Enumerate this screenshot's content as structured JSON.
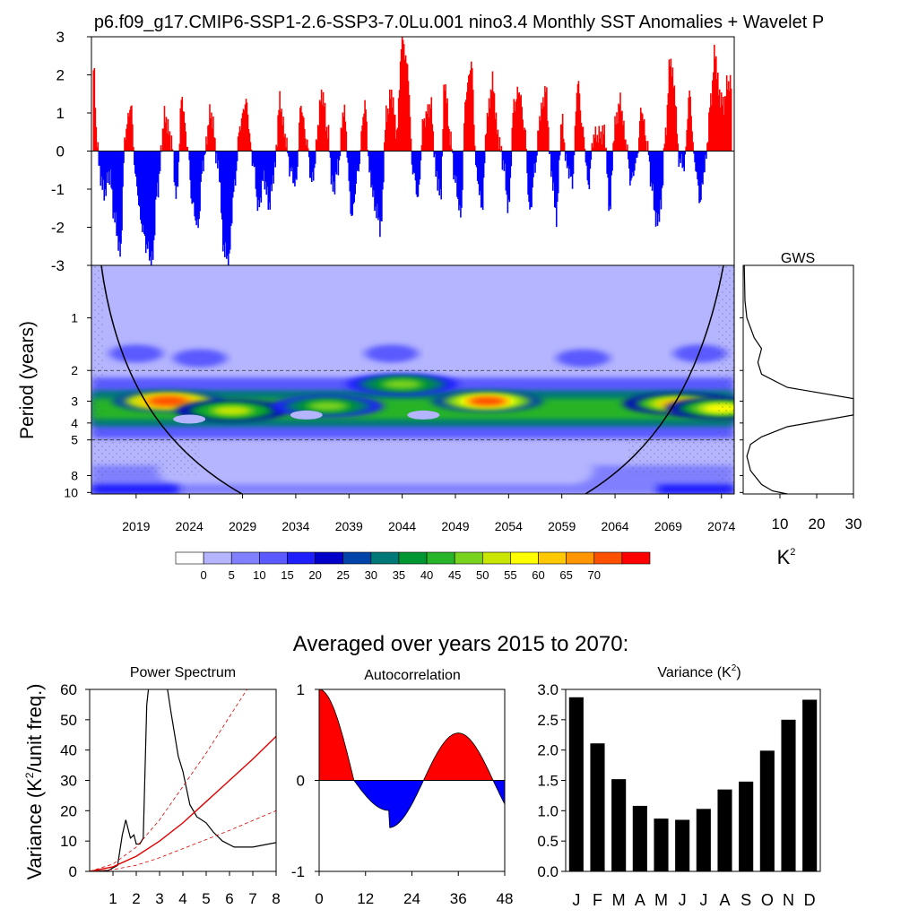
{
  "title": "p6.f09_g17.CMIP6-SSP1-2.6-SSP3-7.0Lu.001 nino3.4 Monthly SST Anomalies + Wavelet P",
  "subtitle": "Averaged over years 2015 to 2070:",
  "colors": {
    "positive": "#ff0000",
    "negative": "#0000ff"
  },
  "chart_data": [
    {
      "type": "area",
      "name": "nino34-timeseries",
      "xlim": [
        2014.8,
        2075.2
      ],
      "ylim": [
        -3,
        3
      ],
      "yticks": [
        "3",
        "2",
        "1",
        "0",
        "-1",
        "-2",
        "-3"
      ],
      "ytick_values": [
        3,
        2,
        1,
        0,
        -1,
        -2,
        -3
      ],
      "anchors": [
        [
          2015.0,
          2.3
        ],
        [
          2015.3,
          0.4
        ],
        [
          2015.6,
          -0.6
        ],
        [
          2016.0,
          -1.1
        ],
        [
          2016.5,
          -0.6
        ],
        [
          2017.0,
          -1.8
        ],
        [
          2017.5,
          -2.7
        ],
        [
          2018.0,
          0.5
        ],
        [
          2018.5,
          1.2
        ],
        [
          2019.0,
          -0.8
        ],
        [
          2019.5,
          -1.9
        ],
        [
          2020.0,
          -2.5
        ],
        [
          2020.5,
          -2.9
        ],
        [
          2021.0,
          -1.0
        ],
        [
          2021.7,
          0.9
        ],
        [
          2022.3,
          0.3
        ],
        [
          2022.8,
          -1.2
        ],
        [
          2023.3,
          1.4
        ],
        [
          2023.8,
          0.2
        ],
        [
          2024.3,
          -1.4
        ],
        [
          2024.8,
          -2.0
        ],
        [
          2025.3,
          -0.3
        ],
        [
          2026.0,
          1.0
        ],
        [
          2026.8,
          -0.5
        ],
        [
          2027.2,
          -2.5
        ],
        [
          2027.7,
          -2.9
        ],
        [
          2028.2,
          -1.0
        ],
        [
          2028.8,
          0.7
        ],
        [
          2029.3,
          1.3
        ],
        [
          2030.0,
          -0.3
        ],
        [
          2030.5,
          -1.5
        ],
        [
          2031.0,
          -0.7
        ],
        [
          2031.5,
          -1.4
        ],
        [
          2032.0,
          -0.5
        ],
        [
          2032.5,
          1.3
        ],
        [
          2033.0,
          0.4
        ],
        [
          2033.5,
          -0.5
        ],
        [
          2034.0,
          -0.9
        ],
        [
          2034.5,
          1.2
        ],
        [
          2035.0,
          0.3
        ],
        [
          2035.5,
          -0.8
        ],
        [
          2036.5,
          1.5
        ],
        [
          2037.0,
          0.5
        ],
        [
          2037.5,
          -1.0
        ],
        [
          2038.0,
          -0.4
        ],
        [
          2038.5,
          1.1
        ],
        [
          2039.3,
          -1.7
        ],
        [
          2039.8,
          -0.6
        ],
        [
          2040.5,
          1.2
        ],
        [
          2041.0,
          -0.7
        ],
        [
          2041.5,
          -1.5
        ],
        [
          2042.0,
          -2.0
        ],
        [
          2042.5,
          0.9
        ],
        [
          2043.0,
          1.5
        ],
        [
          2043.5,
          0.5
        ],
        [
          2044.0,
          3.0
        ],
        [
          2044.5,
          2.2
        ],
        [
          2045.0,
          -0.5
        ],
        [
          2045.5,
          -1.2
        ],
        [
          2046.0,
          0.8
        ],
        [
          2046.7,
          1.2
        ],
        [
          2047.2,
          -0.6
        ],
        [
          2047.6,
          -1.2
        ],
        [
          2048.0,
          1.8
        ],
        [
          2048.5,
          0.4
        ],
        [
          2049.0,
          -0.8
        ],
        [
          2049.5,
          -1.7
        ],
        [
          2050.0,
          1.5
        ],
        [
          2050.5,
          2.3
        ],
        [
          2051.0,
          -0.6
        ],
        [
          2051.5,
          -1.5
        ],
        [
          2052.0,
          0.9
        ],
        [
          2052.5,
          1.8
        ],
        [
          2053.0,
          0.4
        ],
        [
          2053.5,
          -0.3
        ],
        [
          2054.0,
          -1.5
        ],
        [
          2054.5,
          1.2
        ],
        [
          2055.0,
          1.6
        ],
        [
          2055.5,
          0.6
        ],
        [
          2056.0,
          -1.6
        ],
        [
          2056.5,
          -0.4
        ],
        [
          2057.0,
          1.0
        ],
        [
          2057.5,
          1.6
        ],
        [
          2058.0,
          -0.5
        ],
        [
          2058.5,
          -1.7
        ],
        [
          2059.0,
          0.8
        ],
        [
          2059.5,
          -0.4
        ],
        [
          2060.0,
          -0.8
        ],
        [
          2060.5,
          1.8
        ],
        [
          2061.0,
          0.5
        ],
        [
          2061.5,
          -0.9
        ],
        [
          2062.0,
          0.4
        ],
        [
          2062.5,
          0.4
        ],
        [
          2063.0,
          0.5
        ],
        [
          2063.5,
          -1.5
        ],
        [
          2064.0,
          0.7
        ],
        [
          2064.5,
          1.3
        ],
        [
          2065.0,
          0.3
        ],
        [
          2065.5,
          -0.8
        ],
        [
          2066.0,
          -0.3
        ],
        [
          2066.5,
          1.1
        ],
        [
          2067.0,
          0.2
        ],
        [
          2067.5,
          -1.0
        ],
        [
          2067.9,
          -1.9
        ],
        [
          2068.3,
          -1.5
        ],
        [
          2068.7,
          0.3
        ],
        [
          2069.2,
          2.4
        ],
        [
          2069.6,
          1.6
        ],
        [
          2070.0,
          -0.2
        ],
        [
          2070.5,
          -0.4
        ],
        [
          2071.0,
          1.5
        ],
        [
          2071.5,
          -0.3
        ],
        [
          2072.0,
          -1.3
        ],
        [
          2072.5,
          -0.3
        ],
        [
          2073.0,
          1.3
        ],
        [
          2073.4,
          2.6
        ],
        [
          2073.8,
          1.5
        ],
        [
          2074.2,
          1.2
        ],
        [
          2074.6,
          1.8
        ],
        [
          2075.0,
          1.7
        ]
      ]
    },
    {
      "type": "heatmap",
      "name": "wavelet-power-spectrum",
      "ylabel": "Period (years)",
      "log_y": true,
      "ylim": [
        0.5,
        10.2
      ],
      "yticks": [
        "1",
        "2",
        "3",
        "4",
        "5",
        "8",
        "10"
      ],
      "ytick_values": [
        1,
        2,
        3,
        4,
        5,
        8,
        10
      ],
      "xticks": [
        "2019",
        "2024",
        "2029",
        "2034",
        "2039",
        "2044",
        "2049",
        "2054",
        "2059",
        "2064",
        "2069",
        "2074"
      ],
      "xtick_values": [
        2019,
        2024,
        2029,
        2034,
        2039,
        2044,
        2049,
        2054,
        2059,
        2064,
        2069,
        2074
      ],
      "dashed_periods": [
        2,
        5
      ],
      "band_period": 3.3,
      "hotspots": [
        [
          2022,
          3.0,
          72
        ],
        [
          2052,
          3.0,
          70
        ],
        [
          2028,
          3.4,
          50
        ],
        [
          2037,
          3.2,
          45
        ],
        [
          2044,
          2.4,
          45
        ],
        [
          2070,
          3.1,
          60
        ],
        [
          2074,
          3.3,
          55
        ]
      ]
    },
    {
      "type": "line",
      "name": "global-wavelet-spectrum",
      "title": "GWS",
      "xlabel": "K",
      "xlabel_sup": "2",
      "xlim": [
        0,
        30
      ],
      "xticks": [
        "10",
        "20",
        "30"
      ],
      "xtick_values": [
        10,
        20,
        30
      ],
      "x": [
        0.3,
        0.5,
        1.0,
        3.0,
        5.0,
        4.0,
        5.0,
        12.0,
        30.0,
        30.0,
        12.0,
        5.0,
        2.0,
        1.0,
        2.0,
        5.0,
        8.0,
        12.0
      ],
      "y": [
        0.5,
        0.8,
        1.0,
        1.3,
        1.5,
        1.8,
        2.1,
        2.5,
        2.9,
        3.6,
        4.2,
        4.8,
        5.3,
        6.2,
        7.5,
        9.0,
        9.8,
        10.2
      ]
    },
    {
      "type": "bar",
      "name": "colorbar",
      "categories": [
        "0",
        "5",
        "10",
        "15",
        "20",
        "25",
        "30",
        "35",
        "40",
        "45",
        "50",
        "55",
        "60",
        "65",
        "70"
      ],
      "colors": [
        "#ffffff",
        "#b4b4ff",
        "#8080ff",
        "#5a5aff",
        "#1e1eff",
        "#0000c8",
        "#0044aa",
        "#007878",
        "#009632",
        "#28b428",
        "#78d21e",
        "#c8e600",
        "#ffff00",
        "#ffc800",
        "#ff9600",
        "#ff5000",
        "#ff0000"
      ]
    },
    {
      "type": "line",
      "name": "power-spectrum",
      "title": "Power Spectrum",
      "ylabel": "Variance (K",
      "ylabel_sup": "2",
      "ylabel_end": "/unit freq.)",
      "xlim": [
        0,
        8
      ],
      "ylim": [
        0,
        60
      ],
      "xticks": [
        "1",
        "2",
        "3",
        "4",
        "5",
        "6",
        "7",
        "8"
      ],
      "xtick_values": [
        1,
        2,
        3,
        4,
        5,
        6,
        7,
        8
      ],
      "yticks": [
        "0",
        "10",
        "20",
        "30",
        "40",
        "50",
        "60"
      ],
      "ytick_values": [
        0,
        10,
        20,
        30,
        40,
        50,
        60
      ],
      "series": [
        {
          "values": [
            [
              0,
              0
            ],
            [
              0.8,
              0.3
            ],
            [
              1.2,
              2
            ],
            [
              1.4,
              12
            ],
            [
              1.55,
              17
            ],
            [
              1.75,
              11
            ],
            [
              1.9,
              12
            ],
            [
              2.0,
              9
            ],
            [
              2.15,
              9
            ],
            [
              2.3,
              11
            ],
            [
              2.45,
              55
            ],
            [
              2.55,
              62
            ],
            [
              3.3,
              62
            ],
            [
              3.5,
              52
            ],
            [
              3.8,
              38
            ],
            [
              4.0,
              33
            ],
            [
              4.3,
              22
            ],
            [
              4.6,
              18
            ],
            [
              5.0,
              16
            ],
            [
              5.3,
              13
            ],
            [
              5.7,
              10
            ],
            [
              6.2,
              8
            ],
            [
              7.0,
              8
            ],
            [
              8,
              9.5
            ]
          ]
        },
        {
          "values": [
            [
              0,
              0
            ],
            [
              1,
              1.5
            ],
            [
              2,
              5
            ],
            [
              3,
              10
            ],
            [
              4,
              16
            ],
            [
              5,
              23
            ],
            [
              6,
              30
            ],
            [
              7,
              37
            ],
            [
              8,
              44.5
            ]
          ]
        },
        {
          "values": [
            [
              0,
              0
            ],
            [
              1,
              2.4
            ],
            [
              2,
              8
            ],
            [
              3,
              17
            ],
            [
              4,
              28
            ],
            [
              5,
              39
            ],
            [
              6,
              51
            ],
            [
              7,
              63
            ]
          ]
        },
        {
          "values": [
            [
              0,
              0
            ],
            [
              1,
              0.6
            ],
            [
              2,
              2
            ],
            [
              3,
              4.5
            ],
            [
              4,
              7.5
            ],
            [
              5,
              10.5
            ],
            [
              6,
              13.5
            ],
            [
              7,
              16.8
            ],
            [
              8,
              20
            ]
          ]
        }
      ]
    },
    {
      "type": "area",
      "name": "autocorrelation",
      "title": "Autocorrelation",
      "xlim": [
        0,
        48
      ],
      "ylim": [
        -1,
        1
      ],
      "xticks": [
        "0",
        "12",
        "24",
        "36",
        "48"
      ],
      "xtick_values": [
        0,
        12,
        24,
        36,
        48
      ],
      "yticks": [
        "1",
        "0",
        "-1"
      ],
      "ytick_values": [
        1,
        0,
        -1
      ],
      "amplitude": 0.52,
      "period_months": 36,
      "damping": 0.1
    },
    {
      "type": "bar",
      "name": "monthly-variance",
      "title": "Variance (K",
      "title_sup": "2",
      "title_end": ")",
      "ylim": [
        0,
        3
      ],
      "categories": [
        "J",
        "F",
        "M",
        "A",
        "M",
        "J",
        "J",
        "A",
        "S",
        "O",
        "N",
        "D"
      ],
      "values": [
        2.87,
        2.11,
        1.52,
        1.08,
        0.87,
        0.85,
        1.03,
        1.35,
        1.48,
        1.99,
        2.5,
        2.83
      ],
      "yticks": [
        "3.0",
        "2.5",
        "2.0",
        "1.5",
        "1.0",
        "0.5",
        "0.0"
      ],
      "ytick_values": [
        3.0,
        2.5,
        2.0,
        1.5,
        1.0,
        0.5,
        0.0
      ]
    }
  ]
}
